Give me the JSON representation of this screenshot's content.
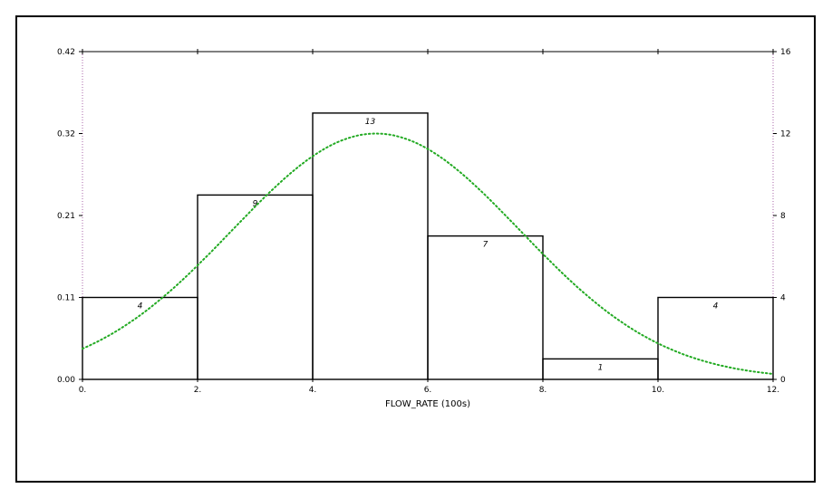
{
  "chart_data": {
    "type": "bar",
    "title": "",
    "xlabel": "FLOW_RATE  (100s)",
    "ylabel_left": "",
    "ylabel_right": "",
    "bins": [
      {
        "x0": 0,
        "x1": 2,
        "count": 4,
        "label": "4"
      },
      {
        "x0": 2,
        "x1": 4,
        "count": 9,
        "label": "9"
      },
      {
        "x0": 4,
        "x1": 6,
        "count": 13,
        "label": "13"
      },
      {
        "x0": 6,
        "x1": 8,
        "count": 7,
        "label": "7"
      },
      {
        "x0": 8,
        "x1": 10,
        "count": 1,
        "label": "1"
      },
      {
        "x0": 10,
        "x1": 12,
        "count": 4,
        "label": "4"
      }
    ],
    "xlim": [
      0,
      12
    ],
    "xticks": [
      0,
      2,
      4,
      6,
      8,
      10,
      12
    ],
    "xtick_labels": [
      "0.",
      "2.",
      "4.",
      "6.",
      "8.",
      "10.",
      "12."
    ],
    "ylim_left": [
      0,
      0.42
    ],
    "yticks_left": [
      "0.00",
      "0.11",
      "0.21",
      "0.32",
      "0.42"
    ],
    "ylim_right": [
      0,
      16
    ],
    "yticks_right": [
      "0",
      "4",
      "8",
      "12",
      "16"
    ],
    "normal_curve": {
      "mean": 5.1,
      "sd": 2.5,
      "peak_count": 12,
      "style": "dotted"
    },
    "colors": {
      "bars": "#000000",
      "curve": "#22aa22",
      "axis_ticks": "#aa66aa"
    },
    "grid": false,
    "legend": "none"
  }
}
